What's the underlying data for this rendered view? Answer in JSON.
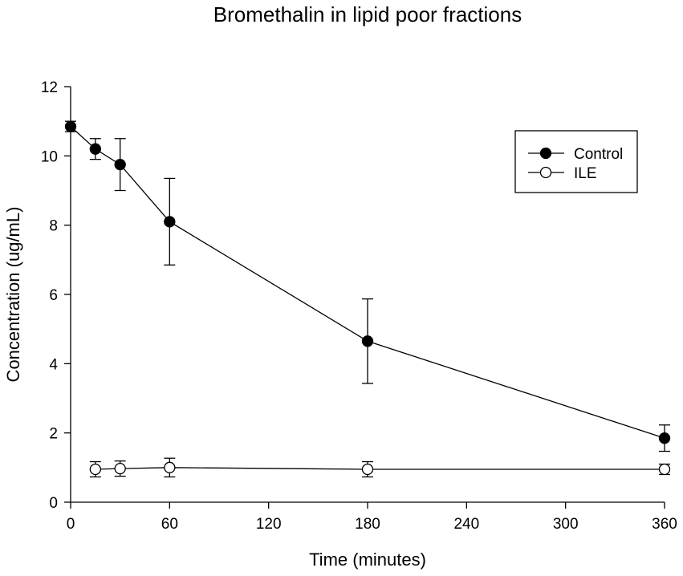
{
  "chart_data": {
    "type": "line",
    "title": "Bromethalin in lipid poor fractions",
    "xlabel": "Time (minutes)",
    "ylabel": "Concentration (ug/mL)",
    "xlim": [
      0,
      360
    ],
    "ylim": [
      0,
      12
    ],
    "xticks": [
      0,
      60,
      120,
      180,
      240,
      300,
      360
    ],
    "yticks": [
      0,
      2,
      4,
      6,
      8,
      10,
      12
    ],
    "grid": false,
    "legend": {
      "position": "top-right",
      "entries": [
        "Control",
        "ILE"
      ]
    },
    "series": [
      {
        "name": "Control",
        "marker": "filled-circle",
        "x": [
          0,
          15,
          30,
          60,
          180,
          360
        ],
        "y": [
          10.85,
          10.2,
          9.75,
          8.1,
          4.65,
          1.85
        ],
        "err": [
          0.15,
          0.3,
          0.75,
          1.25,
          1.22,
          0.38
        ]
      },
      {
        "name": "ILE",
        "marker": "open-circle",
        "x": [
          15,
          30,
          60,
          180,
          360
        ],
        "y": [
          0.95,
          0.97,
          1.0,
          0.95,
          0.95
        ],
        "err": [
          0.22,
          0.22,
          0.27,
          0.22,
          0.15
        ]
      }
    ]
  }
}
